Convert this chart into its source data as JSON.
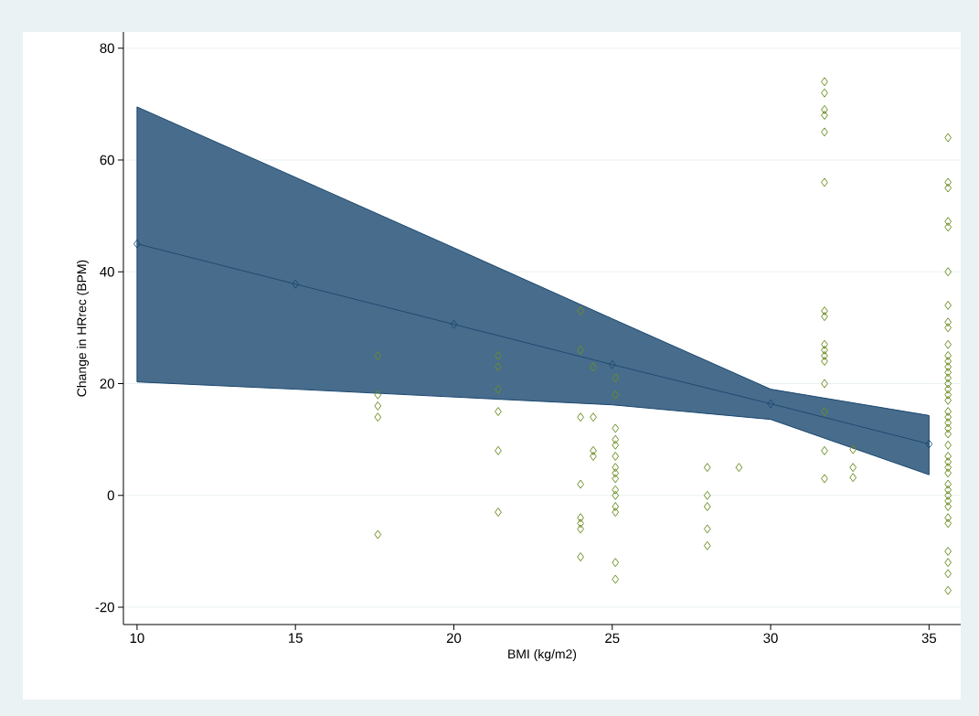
{
  "chart_data": {
    "type": "scatter",
    "xlabel": "BMI (kg/m2)",
    "ylabel": "Change in HRrec (BPM)",
    "xlim": [
      9.57,
      36.0
    ],
    "ylim": [
      -23.1,
      82.9
    ],
    "xticks": [
      10,
      15,
      20,
      25,
      30,
      35
    ],
    "yticks": [
      -20,
      0,
      20,
      40,
      60,
      80
    ],
    "grid": "y",
    "legend": false,
    "marker": "diamond",
    "series": [
      {
        "type": "line",
        "color": "#1a476f",
        "x": [
          10,
          15,
          20,
          25,
          30,
          35
        ],
        "values": [
          45,
          37.8,
          30.6,
          23.4,
          16.4,
          9.2
        ],
        "lower": [
          20.3,
          19.0,
          17.6,
          16.2,
          13.6,
          3.7
        ],
        "upper": [
          69.5,
          56.9,
          44.3,
          31.6,
          19.0,
          14.3
        ]
      },
      {
        "color": "#6b8e23",
        "x": [
          17.6,
          17.6,
          17.6,
          17.6,
          17.6,
          21.4,
          21.4,
          21.4,
          21.4,
          21.4,
          21.4,
          24.0,
          24.0,
          24.0,
          24.0,
          24.0,
          24.0,
          24.0,
          24.0,
          24.4,
          24.4,
          24.4,
          24.4,
          25.1,
          25.1,
          25.1,
          25.1,
          25.1,
          25.1,
          25.1,
          25.1,
          25.1,
          25.1,
          25.1,
          25.1,
          25.1,
          25.1,
          25.1,
          28.0,
          28.0,
          28.0,
          28.0,
          28.0,
          29.0,
          31.7,
          31.7,
          31.7,
          31.7,
          31.7,
          31.7,
          31.7,
          31.7,
          31.7,
          31.7,
          31.7,
          31.7,
          31.7,
          31.7,
          31.7,
          31.7,
          32.6,
          32.6,
          32.6,
          35.6,
          35.6,
          35.6,
          35.6,
          35.6,
          35.6,
          35.6,
          35.6,
          35.6,
          35.6,
          35.6,
          35.6,
          35.6,
          35.6,
          35.6,
          35.6,
          35.6,
          35.6,
          35.6,
          35.6,
          35.6,
          35.6,
          35.6,
          35.6,
          35.6,
          35.6,
          35.6,
          35.6,
          35.6,
          35.6,
          35.6,
          35.6,
          35.6,
          35.6,
          35.6,
          35.6,
          35.6,
          35.6,
          35.6,
          35.6
        ],
        "values": [
          25,
          18,
          16,
          14,
          -7,
          25,
          23,
          19,
          15,
          8,
          -3,
          33,
          26,
          14,
          2,
          -4,
          -5,
          -6,
          -11,
          23,
          14,
          8,
          7,
          21,
          18,
          12,
          10,
          9,
          7,
          5,
          4,
          3,
          1,
          0,
          -2,
          -3,
          -12,
          -15,
          5,
          0,
          -2,
          -6,
          -9,
          5,
          74,
          72,
          69,
          68,
          65,
          56,
          33,
          32,
          27,
          26,
          25,
          24,
          20,
          15,
          8,
          3,
          8.2,
          5,
          3.2,
          64,
          56,
          55,
          49,
          48,
          40,
          34,
          31,
          30,
          27,
          25,
          24,
          23,
          22,
          21,
          20,
          19,
          18,
          17,
          15,
          14,
          13,
          12,
          11,
          9,
          7,
          6,
          5,
          4,
          2,
          1,
          0,
          -1,
          -2,
          -4,
          -5,
          -10,
          -12,
          -14,
          -17
        ]
      }
    ]
  }
}
